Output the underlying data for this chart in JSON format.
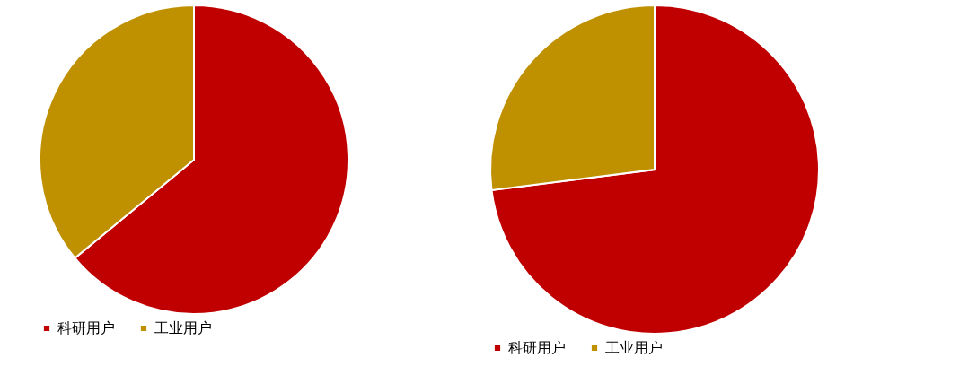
{
  "chart_data": [
    {
      "type": "pie",
      "categories": [
        "科研用户",
        "工业用户"
      ],
      "values": [
        64,
        36
      ],
      "colors": [
        "#c00000",
        "#bf9000"
      ],
      "legend": "bottom"
    },
    {
      "type": "pie",
      "categories": [
        "科研用户",
        "工业用户"
      ],
      "values": [
        73,
        27
      ],
      "colors": [
        "#c00000",
        "#bf9000"
      ],
      "legend": "bottom"
    }
  ]
}
